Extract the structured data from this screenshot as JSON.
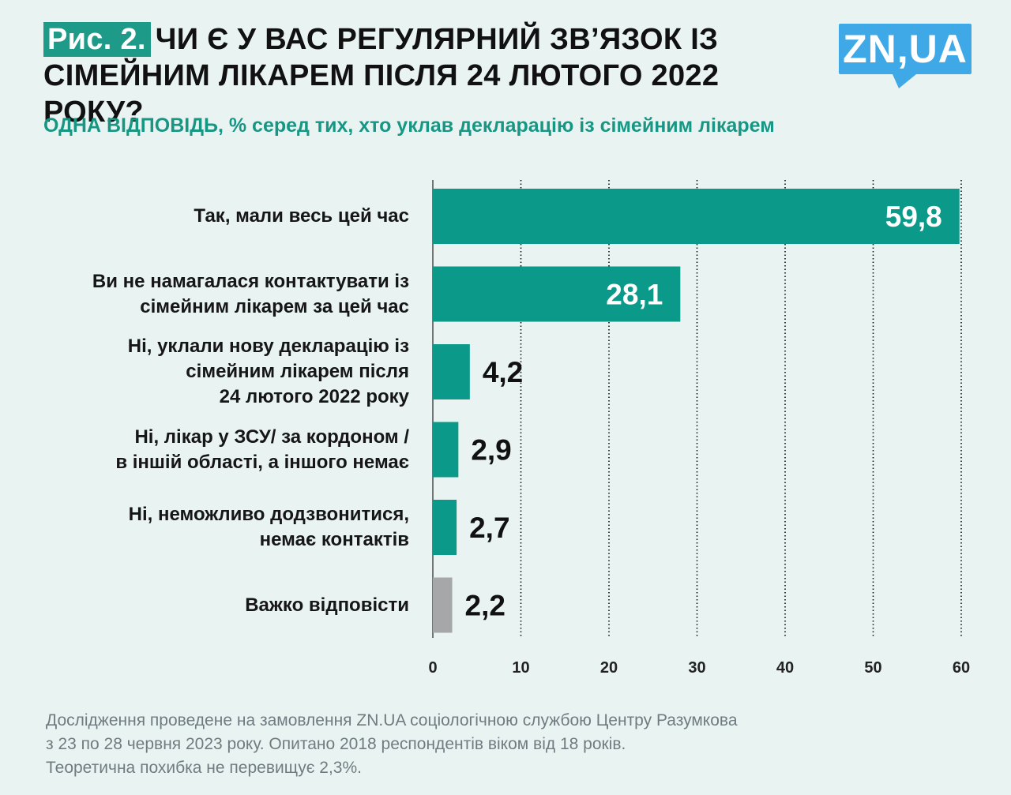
{
  "header": {
    "figure_label": "Рис. 2.",
    "title": "ЧИ Є У ВАС РЕГУЛЯРНИЙ ЗВ’ЯЗОК ІЗ СІМЕЙНИМ ЛІКАРЕМ ПІСЛЯ 24 ЛЮТОГО 2022 РОКУ?",
    "subtitle": "ОДНА ВІДПОВІДЬ, % серед тих, хто уклав декларацію із сімейним лікарем"
  },
  "logo": {
    "text": "ZN,UA"
  },
  "chart_data": {
    "type": "bar",
    "orientation": "horizontal",
    "categories": [
      "Так, мали весь цей час",
      "Ви не намагалася контактувати із сімейним лікарем за цей час",
      "Ні, уклали нову декларацію із сімейним лікарем після 24 лютого 2022 року",
      "Ні, лікар у ЗСУ/ за кордоном / в іншій області, а іншого немає",
      "Ні, неможливо додзвонитися, немає контактів",
      "Важко відповісти"
    ],
    "category_lines": [
      [
        "Так, мали весь цей час"
      ],
      [
        "Ви не намагалася контактувати із",
        "сімейним лікарем за цей час"
      ],
      [
        "Ні, уклали нову декларацію із",
        "сімейним лікарем після",
        "24 лютого 2022 року"
      ],
      [
        "Ні, лікар у ЗСУ/ за кордоном /",
        "в іншій області, а іншого немає"
      ],
      [
        "Ні, неможливо додзвонитися,",
        "немає контактів"
      ],
      [
        "Важко відповісти"
      ]
    ],
    "values": [
      59.8,
      28.1,
      4.2,
      2.9,
      2.7,
      2.2
    ],
    "value_labels": [
      "59,8",
      "28,1",
      "4,2",
      "2,9",
      "2,7",
      "2,2"
    ],
    "bar_colors": [
      "#0b9a89",
      "#0b9a89",
      "#0b9a89",
      "#0b9a89",
      "#0b9a89",
      "#a5a7a8"
    ],
    "xlim": [
      0,
      60
    ],
    "xticks": [
      0,
      10,
      20,
      30,
      40,
      50,
      60
    ],
    "grid": "vertical dotted",
    "xlabel": "",
    "ylabel": ""
  },
  "footnote": {
    "lines": [
      "Дослідження проведене на замовлення ZN.UA соціологічною службою Центру Разумкова",
      "з 23 по 28 червня 2023 року. Опитано 2018 респондентів віком від 18 років.",
      "Теоретична похибка не перевищує 2,3%."
    ]
  }
}
